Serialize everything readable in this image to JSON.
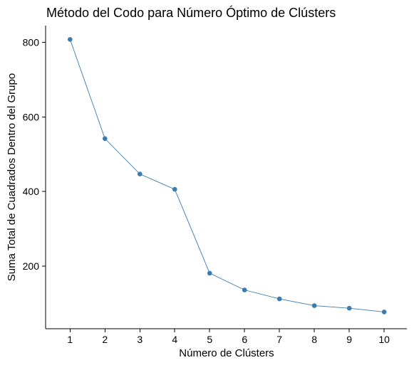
{
  "chart_data": {
    "type": "line",
    "title": "Método del Codo para Número Óptimo de Clústers",
    "xlabel": "Número de Clústers",
    "ylabel": "Suma Total de Cuadrados Dentro del Grupo",
    "x": [
      1,
      2,
      3,
      4,
      5,
      6,
      7,
      8,
      9,
      10
    ],
    "x_tick_labels": [
      "1",
      "2",
      "3",
      "4",
      "5",
      "6",
      "7",
      "8",
      "9",
      "10"
    ],
    "series": [
      {
        "values": [
          808,
          542,
          447,
          406,
          181,
          136,
          112,
          94,
          87,
          77
        ],
        "color": "#3a7bb0",
        "marker": "circle"
      }
    ],
    "y_ticks": [
      200,
      400,
      600,
      800
    ],
    "y_tick_labels": [
      "200",
      "400",
      "600",
      "800"
    ],
    "xlim": [
      0.3,
      10.65
    ],
    "ylim": [
      32,
      845
    ],
    "grid": false,
    "legend": "none"
  }
}
